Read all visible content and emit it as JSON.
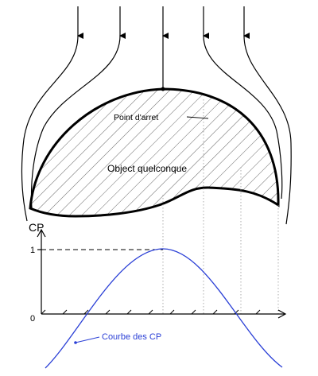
{
  "labels": {
    "stagnation_point": "Point d'arret",
    "object": "Object quelconque",
    "cp_axis": "CP",
    "tick_one": "1",
    "tick_zero": "0",
    "curve": "Courbe des CP"
  },
  "colors": {
    "ink": "#000000",
    "curve": "#2a3fd6",
    "guide": "#9a9a9a",
    "hatch": "#555555"
  },
  "chart_data": {
    "type": "line",
    "ylabel": "CP",
    "y_ticks": [
      0,
      1
    ],
    "series": [
      {
        "name": "Courbe des CP",
        "peak": 1
      }
    ]
  }
}
